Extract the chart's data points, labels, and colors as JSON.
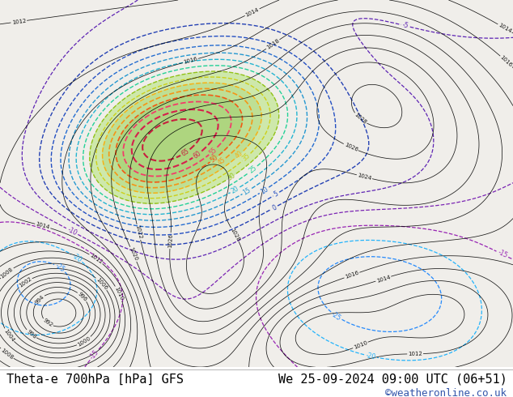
{
  "title_left": "Theta-e 700hPa [hPa] GFS",
  "title_right": "We 25-09-2024 09:00 UTC (06+51)",
  "copyright": "©weatheronline.co.uk",
  "bg_color": "#ffffff",
  "title_font_size": 11,
  "copyright_font_size": 9,
  "fig_width": 6.34,
  "fig_height": 4.9,
  "dpi": 100
}
